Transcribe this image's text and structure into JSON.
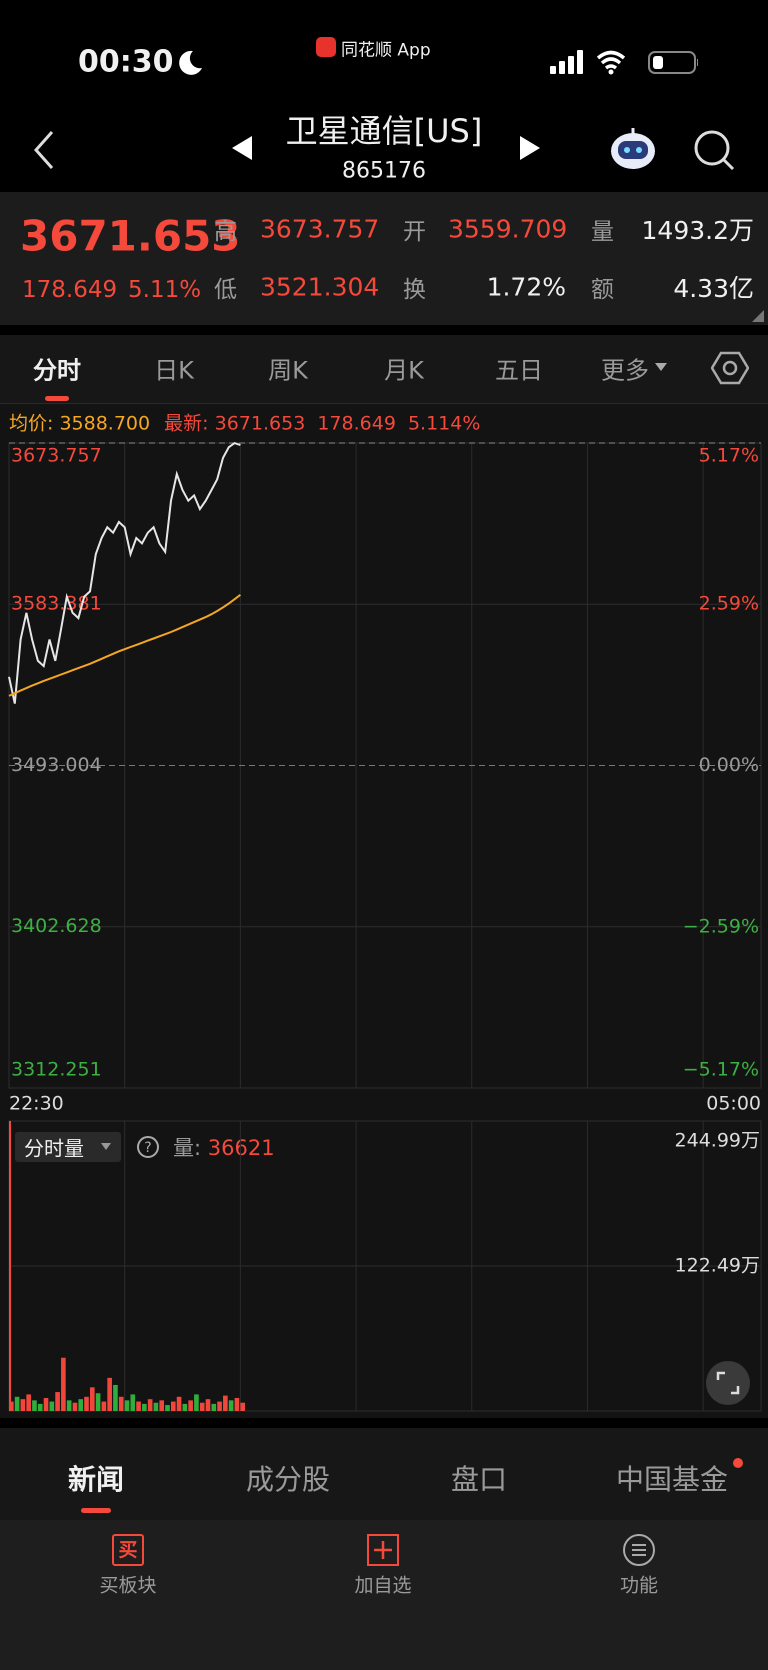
{
  "status_bar": {
    "time": "00:30",
    "app_name": "同花顺 App"
  },
  "header": {
    "title": "卫星通信[US]",
    "code": "865176"
  },
  "quote": {
    "price": "3671.653",
    "change": "178.649",
    "change_pct": "5.11%",
    "stats": [
      {
        "label": "高",
        "value": "3673.757"
      },
      {
        "label": "开",
        "value": "3559.709"
      },
      {
        "label": "量",
        "value": "1493.2万"
      },
      {
        "label": "低",
        "value": "3521.304"
      },
      {
        "label": "换",
        "value": "1.72%"
      },
      {
        "label": "额",
        "value": "4.33亿"
      }
    ]
  },
  "period_tabs": [
    "分时",
    "日K",
    "周K",
    "月K",
    "五日",
    "更多"
  ],
  "info_line": {
    "avg_label": "均价:",
    "avg_value": "3588.700",
    "latest_label": "最新:",
    "latest_value": "3671.653",
    "change": "178.649",
    "change_pct": "5.114%"
  },
  "chart_data": [
    {
      "type": "line",
      "x": [
        0,
        3,
        6,
        9,
        12,
        15,
        18,
        21,
        24,
        27,
        30,
        33,
        36,
        39,
        42,
        45,
        48,
        51,
        54,
        57,
        60,
        63,
        66,
        69,
        72,
        75,
        78,
        81,
        84,
        87,
        90,
        93,
        96,
        99,
        102,
        105,
        108,
        111,
        114,
        117,
        120
      ],
      "xlim": [
        0,
        390
      ],
      "xticks": [
        {
          "value": 0,
          "label": "22:30"
        },
        {
          "value": 390,
          "label": "05:00"
        }
      ],
      "ylim": [
        3312.251,
        3673.757
      ],
      "yticks": [
        3312.251,
        3402.628,
        3493.004,
        3583.381,
        3673.757
      ],
      "y2lim": [
        -5.17,
        5.17
      ],
      "y2ticks": [
        {
          "value": -5.17,
          "label": "−5.17%"
        },
        {
          "value": -2.59,
          "label": "−2.59%"
        },
        {
          "value": 0,
          "label": "0.00%"
        },
        {
          "value": 2.59,
          "label": "2.59%"
        },
        {
          "value": 5.17,
          "label": "5.17%"
        }
      ],
      "series": [
        {
          "color": "#e6e6e6",
          "values": [
            3542.7,
            3527.7,
            3563.6,
            3578.6,
            3563.6,
            3551.7,
            3548.7,
            3563.6,
            3551.7,
            3569.6,
            3587.6,
            3578.6,
            3575.6,
            3587.6,
            3590.6,
            3611.5,
            3620.5,
            3626.5,
            3623.5,
            3629.5,
            3626.5,
            3611.5,
            3620.5,
            3617.5,
            3623.5,
            3626.5,
            3617.5,
            3612.7,
            3641.4,
            3656.4,
            3647.4,
            3641.4,
            3644.4,
            3636.7,
            3641.4,
            3647.4,
            3653.4,
            3665.4,
            3671.4,
            3673.7,
            3672.6
          ]
        },
        {
          "color": "#f5a623",
          "values": [
            3532.0,
            3533.5,
            3535.0,
            3536.4,
            3537.8,
            3539.1,
            3540.4,
            3541.6,
            3542.8,
            3544.0,
            3545.2,
            3546.4,
            3547.6,
            3548.8,
            3550.0,
            3551.4,
            3552.8,
            3554.2,
            3555.6,
            3557.0,
            3558.2,
            3559.4,
            3560.6,
            3561.8,
            3563.0,
            3564.2,
            3565.4,
            3566.6,
            3567.8,
            3569.2,
            3570.6,
            3572.0,
            3573.4,
            3574.8,
            3576.2,
            3577.8,
            3579.6,
            3581.6,
            3583.8,
            3586.2,
            3588.7
          ]
        }
      ],
      "grid": true
    },
    {
      "type": "bar",
      "x": [
        0,
        3,
        6,
        9,
        12,
        15,
        18,
        21,
        24,
        27,
        30,
        33,
        36,
        39,
        42,
        45,
        48,
        51,
        54,
        57,
        60,
        63,
        66,
        69,
        72,
        75,
        78,
        81,
        84,
        87,
        90,
        93,
        96,
        99,
        102,
        105,
        108,
        111,
        114,
        117,
        120
      ],
      "xlim": [
        0,
        390
      ],
      "ylim": [
        0,
        244.99
      ],
      "yticks": [
        {
          "value": 122.49,
          "label": "122.49万"
        },
        {
          "value": 244.99,
          "label": "244.99万"
        }
      ],
      "values": [
        8,
        12,
        10,
        14,
        9,
        6,
        11,
        8,
        16,
        45,
        9,
        7,
        10,
        12,
        20,
        15,
        8,
        28,
        22,
        12,
        9,
        14,
        8,
        6,
        10,
        7,
        9,
        5,
        8,
        12,
        6,
        9,
        14,
        7,
        10,
        6,
        8,
        13,
        9,
        11,
        7
      ],
      "colors": [
        "#f0463c",
        "#2fae3c",
        "#f0463c",
        "#f0463c",
        "#2fae3c",
        "#2fae3c",
        "#f0463c",
        "#2fae3c",
        "#f0463c",
        "#f0463c",
        "#2fae3c",
        "#f0463c",
        "#2fae3c",
        "#f0463c",
        "#f0463c",
        "#2fae3c",
        "#f0463c",
        "#f0463c",
        "#2fae3c",
        "#f0463c",
        "#2fae3c",
        "#2fae3c",
        "#f0463c",
        "#2fae3c",
        "#f0463c",
        "#2fae3c",
        "#f0463c",
        "#2fae3c",
        "#f0463c",
        "#f0463c",
        "#2fae3c",
        "#f0463c",
        "#2fae3c",
        "#f0463c",
        "#f0463c",
        "#2fae3c",
        "#f0463c",
        "#f0463c",
        "#2fae3c",
        "#f0463c",
        "#f0463c"
      ],
      "grid": true
    }
  ],
  "volume_panel": {
    "selector": "分时量",
    "volume_label": "量:",
    "volume_value": "36621"
  },
  "news_tabs": [
    "新闻",
    "成分股",
    "盘口",
    "中国基金"
  ],
  "toolbar": [
    {
      "icon": "买",
      "label": "买板块"
    },
    {
      "label": "加自选"
    },
    {
      "label": "功能"
    }
  ]
}
